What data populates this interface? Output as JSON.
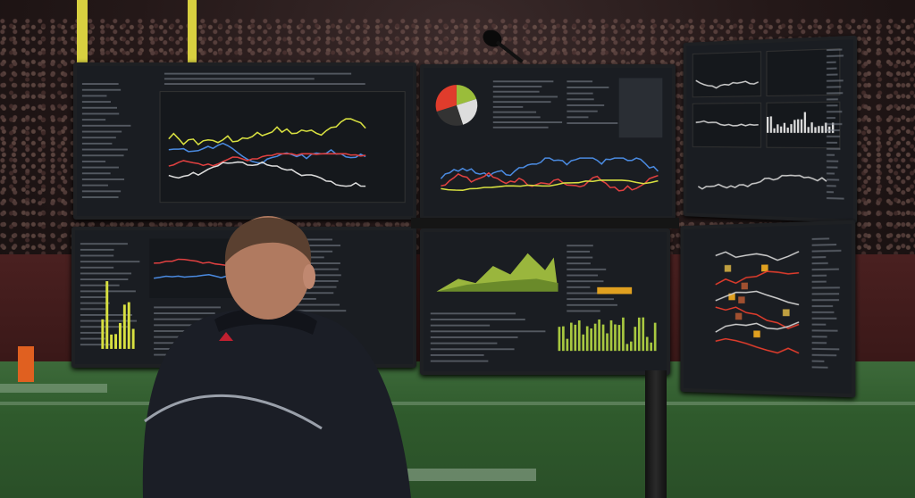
{
  "scene": {
    "description_colors": {
      "screen_bg": "#1a1d22",
      "line_yellow": "#d8e040",
      "line_blue": "#4a8ae0",
      "line_red": "#e04040",
      "line_white": "#dddddd",
      "area_green": "#a8c840",
      "pie_red": "#e03c2c",
      "pie_green": "#9abd3a",
      "jacket": "#1b1e26",
      "field": "#2f5a2c"
    },
    "monitors": [
      {
        "id": "top-left",
        "content": "multi-line-chart"
      },
      {
        "id": "top-center",
        "content": "pie-and-line-chart"
      },
      {
        "id": "top-right",
        "content": "multi-panel-charts"
      },
      {
        "id": "bottom-left",
        "content": "tables-and-bars"
      },
      {
        "id": "bottom-center",
        "content": "area-and-bar-chart"
      },
      {
        "id": "bottom-right",
        "content": "play-diagram"
      }
    ]
  }
}
